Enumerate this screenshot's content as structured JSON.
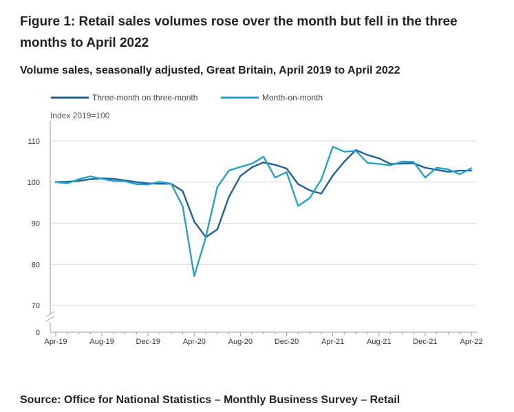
{
  "title": "Figure 1: Retail sales volumes rose over the month but fell in the three months to April 2022",
  "subtitle": "Volume sales, seasonally adjusted, Great Britain, April 2019 to April 2022",
  "source": "Source: Office for National Statistics – Monthly Business Survey – Retail",
  "chart_data": {
    "type": "line",
    "ylabel": "Index 2019=100",
    "yticks": [
      0,
      70,
      80,
      90,
      100,
      110
    ],
    "ylim": [
      70,
      110
    ],
    "axis_break": true,
    "grid": true,
    "legend_position": "top-left",
    "x": [
      "Apr-19",
      "May-19",
      "Jun-19",
      "Jul-19",
      "Aug-19",
      "Sep-19",
      "Oct-19",
      "Nov-19",
      "Dec-19",
      "Jan-20",
      "Feb-20",
      "Mar-20",
      "Apr-20",
      "May-20",
      "Jun-20",
      "Jul-20",
      "Aug-20",
      "Sep-20",
      "Oct-20",
      "Nov-20",
      "Dec-20",
      "Jan-21",
      "Feb-21",
      "Mar-21",
      "Apr-21",
      "May-21",
      "Jun-21",
      "Jul-21",
      "Aug-21",
      "Sep-21",
      "Oct-21",
      "Nov-21",
      "Dec-21",
      "Jan-22",
      "Feb-22",
      "Mar-22",
      "Apr-22"
    ],
    "xtick_labels": [
      "Apr-19",
      "Aug-19",
      "Dec-19",
      "Apr-20",
      "Aug-20",
      "Dec-20",
      "Apr-21",
      "Aug-21",
      "Dec-21",
      "Apr-22"
    ],
    "series": [
      {
        "name": "Three-month on three-month",
        "color": "#206095",
        "values": [
          100.0,
          100.1,
          100.3,
          100.7,
          100.9,
          100.8,
          100.4,
          100.0,
          99.7,
          99.6,
          99.6,
          97.8,
          90.4,
          86.6,
          88.5,
          96.4,
          101.5,
          103.6,
          104.8,
          104.2,
          103.3,
          99.5,
          98.0,
          97.2,
          101.6,
          105.0,
          107.8,
          106.6,
          105.8,
          104.4,
          104.5,
          104.6,
          103.5,
          103.0,
          102.5,
          102.8,
          102.8
        ]
      },
      {
        "name": "Month-on-month",
        "color": "#27a0cc",
        "values": [
          100.0,
          99.7,
          100.7,
          101.4,
          100.8,
          100.3,
          100.2,
          99.5,
          99.4,
          100.1,
          99.6,
          94.1,
          77.1,
          86.6,
          98.8,
          102.8,
          103.7,
          104.5,
          106.2,
          101.1,
          102.4,
          94.2,
          96.1,
          100.6,
          108.6,
          107.4,
          107.6,
          104.7,
          104.4,
          104.1,
          105.0,
          104.9,
          101.1,
          103.5,
          103.1,
          101.9,
          103.4
        ]
      }
    ]
  }
}
